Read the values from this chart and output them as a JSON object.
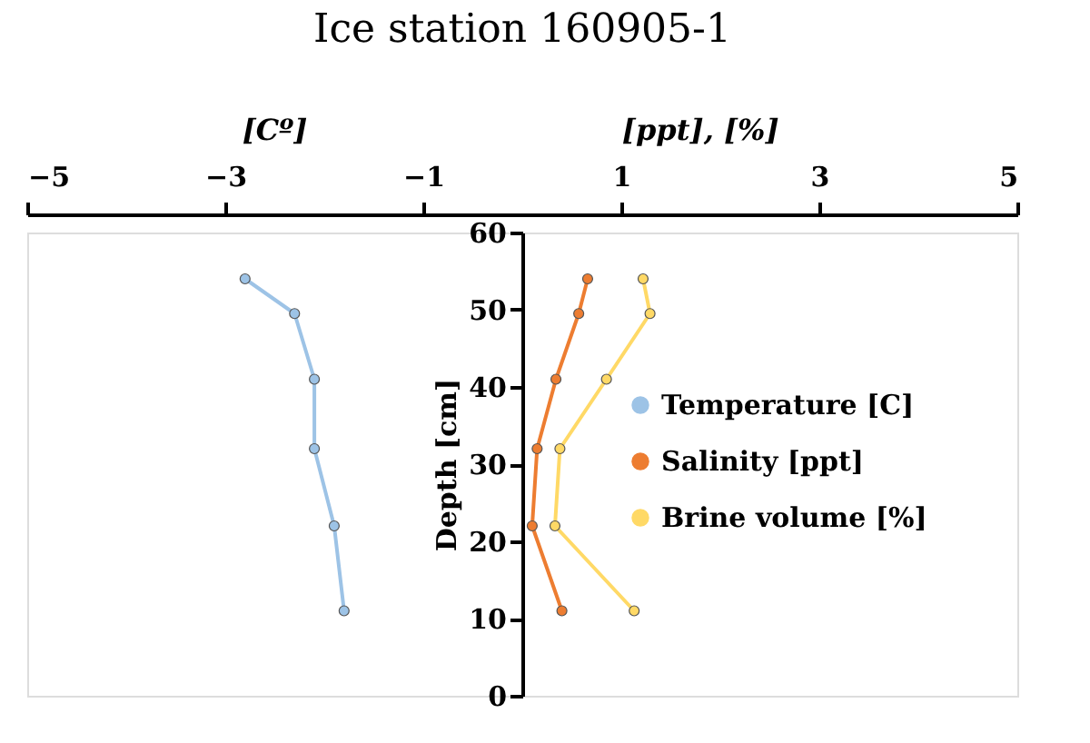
{
  "chart_data": {
    "type": "line",
    "title": "Ice station 160905-1",
    "ylabel": "Depth [cm]",
    "annotations": [
      "[Cº]",
      "[ppt], [%]"
    ],
    "series": [
      {
        "name": "Temperature [C]",
        "color": "#9dc3e6",
        "x": [
          -2.8,
          -2.3,
          -2.1,
          -2.1,
          -1.9,
          -1.8
        ],
        "values": [
          54,
          49.5,
          41,
          32,
          22,
          11
        ]
      },
      {
        "name": "Salinity [ppt]",
        "color": "#ed7d31",
        "x": [
          0.66,
          0.57,
          0.34,
          0.15,
          0.1,
          0.4
        ],
        "values": [
          54,
          49.5,
          41,
          32,
          22,
          11
        ]
      },
      {
        "name": "Brine volume [%]",
        "color": "#ffd966",
        "x": [
          1.22,
          1.29,
          0.85,
          0.38,
          0.33,
          1.13
        ],
        "values": [
          54,
          49.5,
          41,
          32,
          22,
          11
        ]
      }
    ],
    "xlim": [
      -5,
      5
    ],
    "xticks": [
      -5,
      -3,
      -1,
      1,
      3,
      5
    ],
    "ylim": [
      0,
      60
    ],
    "yticks": [
      0,
      10,
      20,
      30,
      40,
      50,
      60
    ],
    "marker": "circle",
    "grid": false,
    "legend": "right"
  }
}
